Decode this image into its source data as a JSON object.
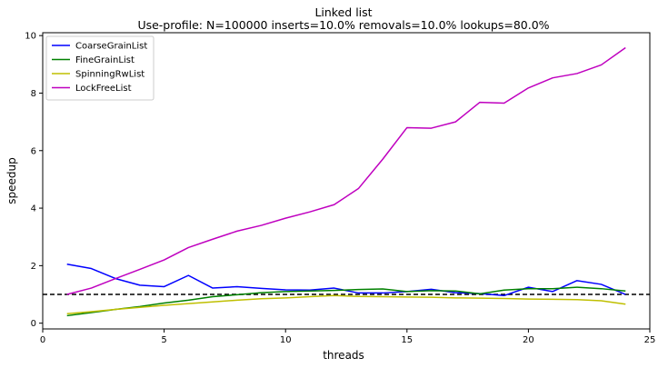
{
  "chart_data": {
    "type": "line",
    "title": "Linked list",
    "subtitle": "Use-profile: N=100000 inserts=10.0% removals=10.0% lookups=80.0%",
    "xlabel": "threads",
    "ylabel": "speedup",
    "xlim": [
      0,
      25
    ],
    "ylim": [
      -0.2,
      10.1
    ],
    "xticks": [
      0,
      5,
      10,
      15,
      20,
      25
    ],
    "yticks": [
      0,
      2,
      4,
      6,
      8,
      10
    ],
    "grid": false,
    "legend_position": "upper-left",
    "reference_line": {
      "y": 1.0,
      "style": "dashed",
      "color": "#000000"
    },
    "x": [
      1,
      2,
      3,
      4,
      5,
      6,
      7,
      8,
      9,
      10,
      11,
      12,
      13,
      14,
      15,
      16,
      17,
      18,
      19,
      20,
      21,
      22,
      23,
      24
    ],
    "series": [
      {
        "name": "CoarseGrainList",
        "color": "#0000ff",
        "values": [
          2.05,
          1.9,
          1.55,
          1.32,
          1.27,
          1.66,
          1.22,
          1.27,
          1.21,
          1.16,
          1.15,
          1.22,
          1.05,
          1.05,
          1.1,
          1.18,
          1.06,
          1.03,
          0.96,
          1.25,
          1.1,
          1.48,
          1.35,
          1.0
        ]
      },
      {
        "name": "FineGrainList",
        "color": "#008000",
        "values": [
          0.26,
          0.37,
          0.48,
          0.58,
          0.7,
          0.8,
          0.92,
          0.99,
          1.06,
          1.1,
          1.12,
          1.14,
          1.17,
          1.19,
          1.1,
          1.13,
          1.12,
          1.02,
          1.15,
          1.2,
          1.2,
          1.25,
          1.2,
          1.12
        ]
      },
      {
        "name": "SpinningRwList",
        "color": "#bfbf00",
        "values": [
          0.33,
          0.4,
          0.48,
          0.55,
          0.62,
          0.68,
          0.74,
          0.8,
          0.85,
          0.88,
          0.92,
          0.96,
          0.93,
          0.92,
          0.91,
          0.9,
          0.88,
          0.87,
          0.86,
          0.84,
          0.83,
          0.82,
          0.78,
          0.66
        ]
      },
      {
        "name": "LockFreeList",
        "color": "#bf00bf",
        "values": [
          1.0,
          1.22,
          1.55,
          1.87,
          2.2,
          2.63,
          2.92,
          3.2,
          3.4,
          3.65,
          3.87,
          4.12,
          4.68,
          5.7,
          6.8,
          6.78,
          7.0,
          7.68,
          7.65,
          8.18,
          8.53,
          8.68,
          8.98,
          9.58
        ]
      }
    ]
  }
}
